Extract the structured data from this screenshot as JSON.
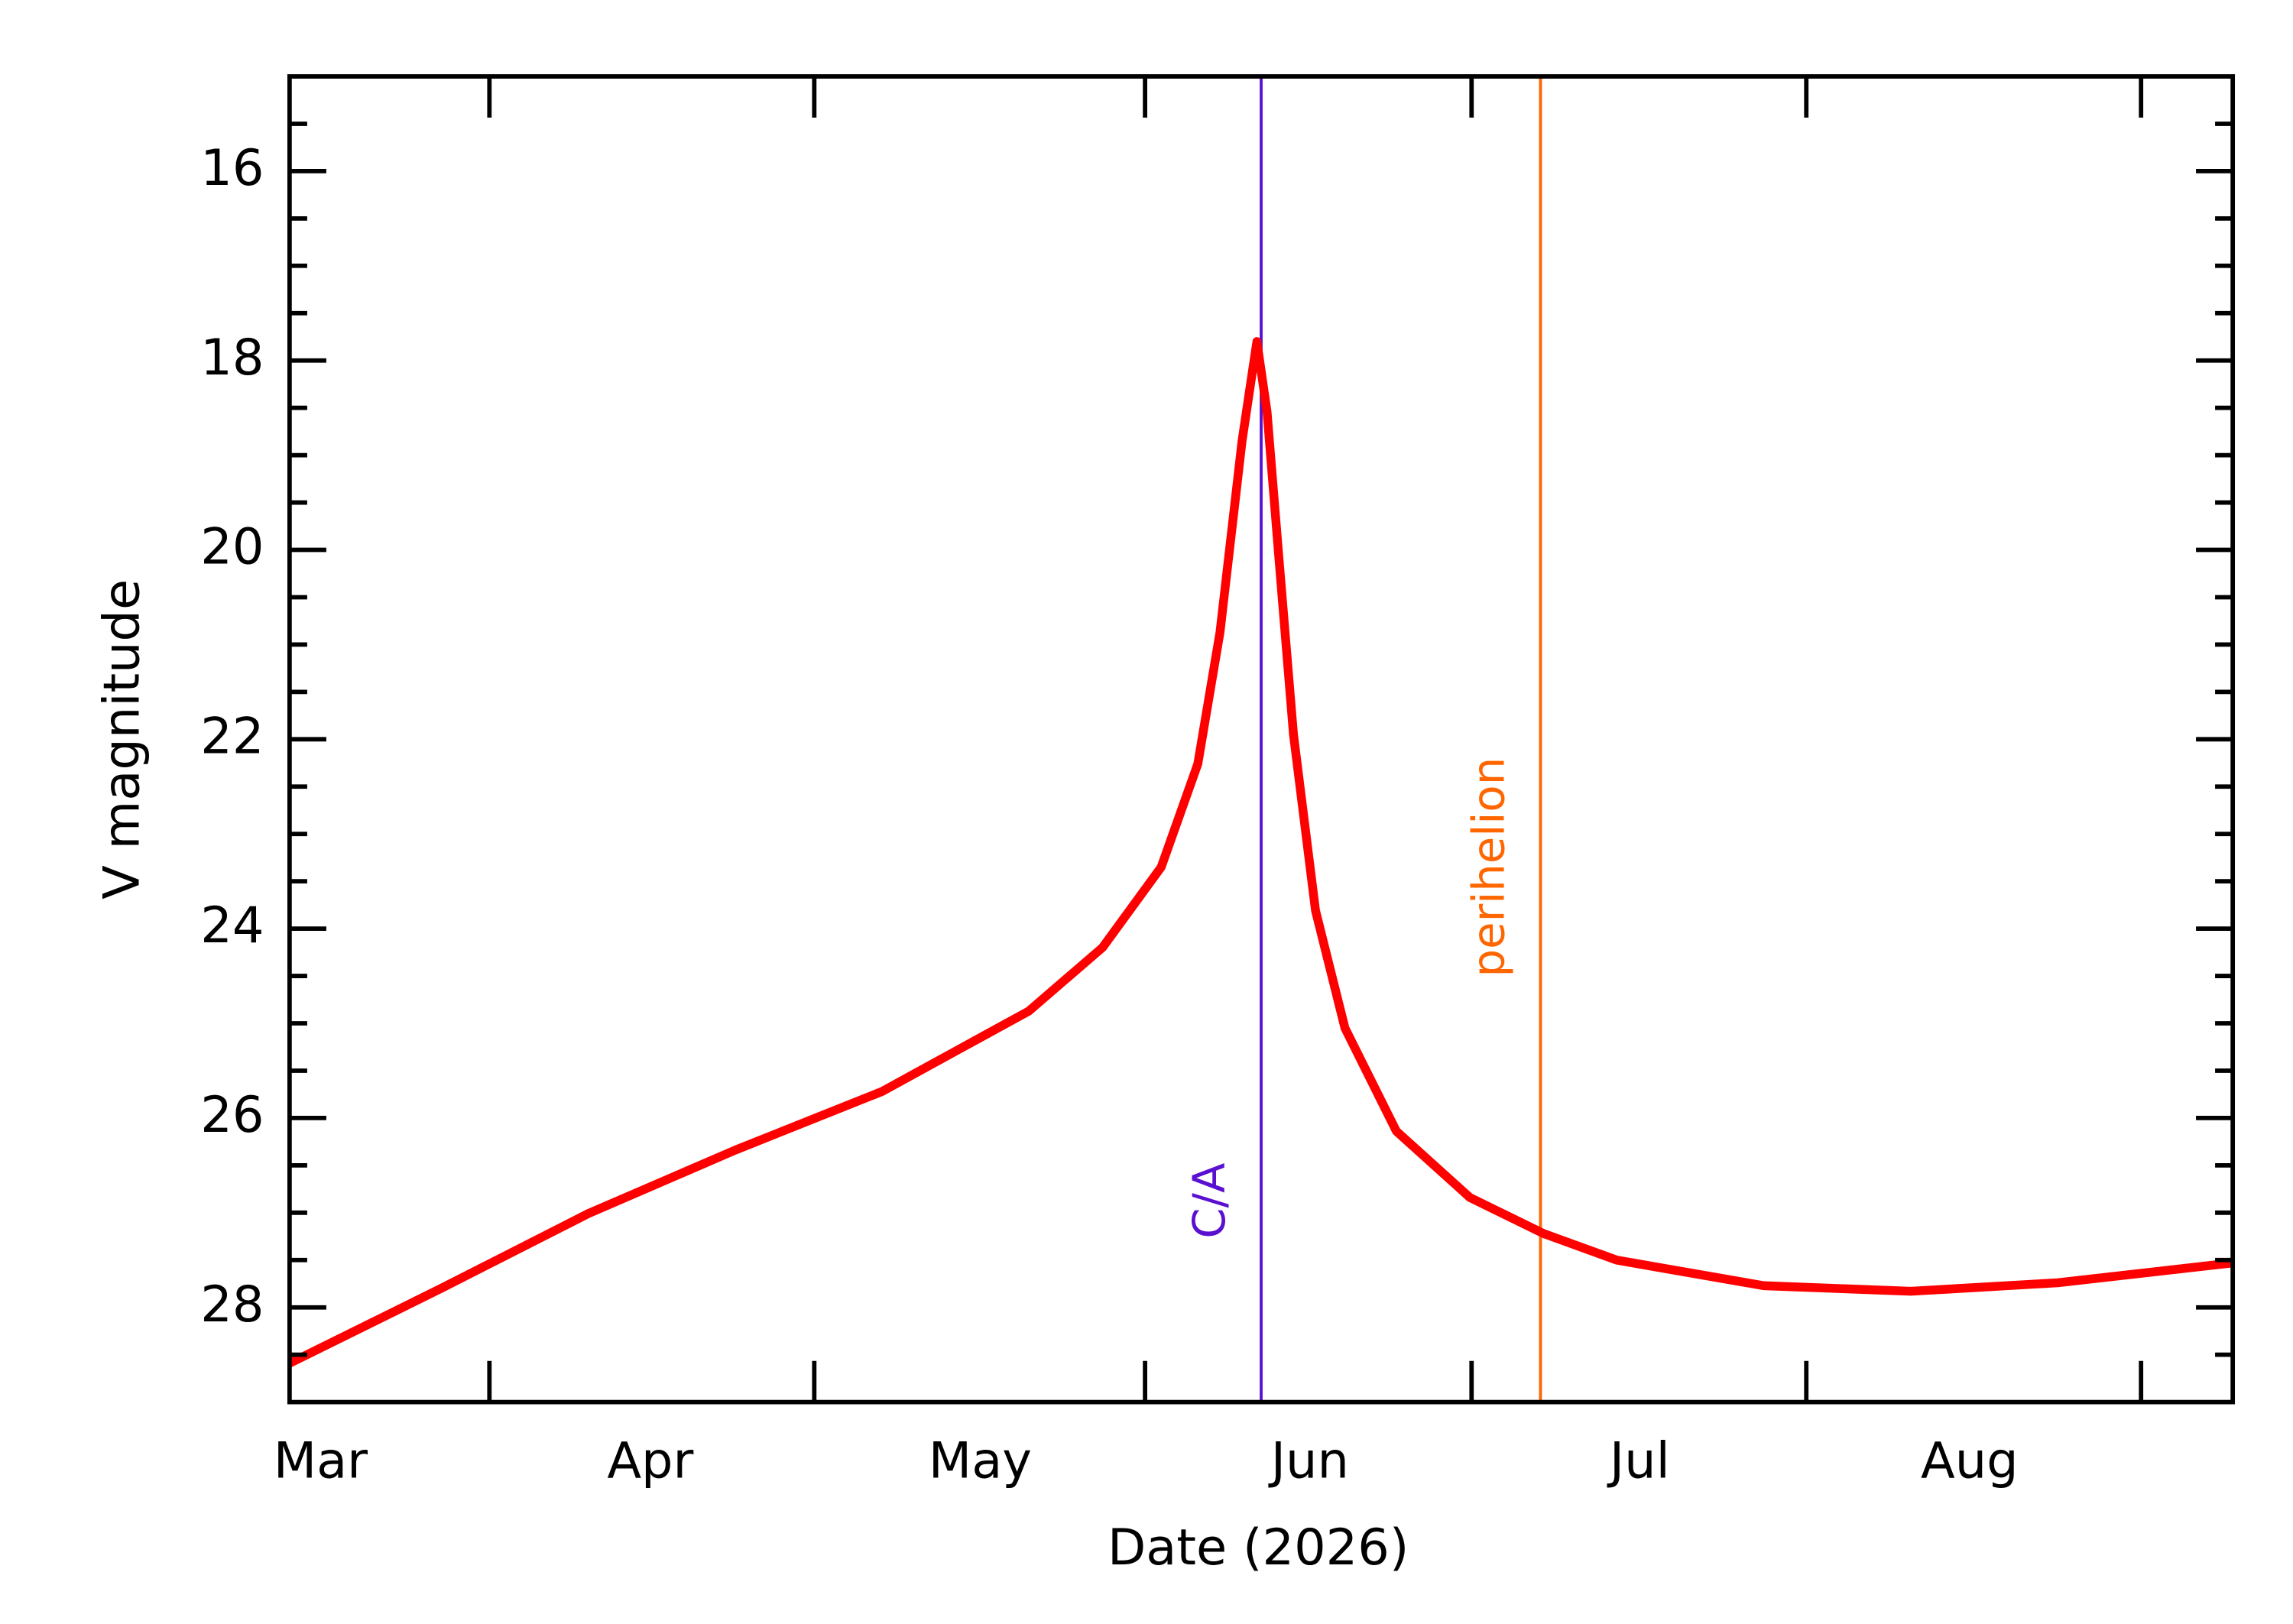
{
  "chart_data": {
    "type": "line",
    "xlabel": "Date (2026)",
    "ylabel": "V magnitude",
    "xlim": [
      -0.094,
      5.798
    ],
    "xticks": [
      {
        "value": 0,
        "label": "Mar"
      },
      {
        "value": 1,
        "label": "Apr"
      },
      {
        "value": 2,
        "label": "May"
      },
      {
        "value": 3,
        "label": "Jun"
      },
      {
        "value": 4,
        "label": "Jul"
      },
      {
        "value": 5,
        "label": "Aug"
      }
    ],
    "x_tick_marks": [
      0.512,
      1.497,
      2.5,
      3.49,
      4.505,
      5.52
    ],
    "ylim": [
      15,
      29
    ],
    "y_inverted": true,
    "yticks": [
      16,
      18,
      20,
      22,
      24,
      26,
      28
    ],
    "y_minor_ticks": [
      15.5,
      16.5,
      17,
      17.5,
      18.5,
      19,
      19.5,
      20.5,
      21,
      21.5,
      22.5,
      23,
      23.5,
      24.5,
      25,
      25.5,
      26.5,
      27,
      27.5,
      28.5
    ],
    "series": [
      {
        "color": "#ff0000",
        "x": [
          -0.094,
          0.365,
          0.811,
          1.257,
          1.702,
          2.148,
          2.371,
          2.549,
          2.66,
          2.727,
          2.794,
          2.839,
          2.87,
          2.906,
          2.95,
          3.017,
          3.106,
          3.262,
          3.485,
          3.708,
          3.93,
          4.376,
          4.822,
          5.267,
          5.798
        ],
        "values": [
          28.59,
          27.8,
          27.01,
          26.34,
          25.72,
          24.87,
          24.2,
          23.35,
          22.26,
          20.87,
          18.85,
          17.8,
          18.54,
          20.09,
          21.95,
          23.81,
          25.05,
          26.14,
          26.84,
          27.22,
          27.5,
          27.77,
          27.83,
          27.74,
          27.53
        ]
      }
    ],
    "vlines": [
      {
        "x": 2.852,
        "label": "C/A",
        "color": "#5a10d0"
      },
      {
        "x": 3.699,
        "label": "perihelion",
        "color": "#ff6600"
      }
    ]
  }
}
